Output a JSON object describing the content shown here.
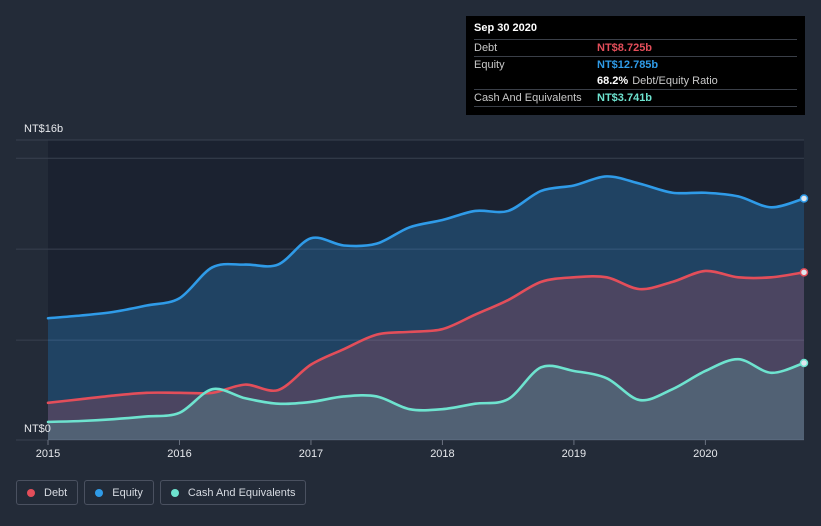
{
  "chart_data": {
    "type": "area",
    "y_top_label": "NT$16b",
    "y_bottom_label": "NT$0",
    "ylim": [
      0,
      16
    ],
    "xlim": [
      2015.0,
      2020.75
    ],
    "x_tick_labels": [
      "2015",
      "2016",
      "2017",
      "2018",
      "2019",
      "2020"
    ],
    "x_ticks": [
      2015,
      2016,
      2017,
      2018,
      2019,
      2020
    ],
    "series": [
      {
        "name": "Equity",
        "color": "#2f9be8",
        "points": [
          [
            2015.0,
            6.2
          ],
          [
            2015.25,
            6.35
          ],
          [
            2015.5,
            6.55
          ],
          [
            2015.75,
            6.9
          ],
          [
            2016.0,
            7.3
          ],
          [
            2016.25,
            9.0
          ],
          [
            2016.5,
            9.15
          ],
          [
            2016.75,
            9.15
          ],
          [
            2017.0,
            10.6
          ],
          [
            2017.25,
            10.2
          ],
          [
            2017.5,
            10.3
          ],
          [
            2017.75,
            11.2
          ],
          [
            2018.0,
            11.6
          ],
          [
            2018.25,
            12.1
          ],
          [
            2018.5,
            12.1
          ],
          [
            2018.75,
            13.2
          ],
          [
            2019.0,
            13.5
          ],
          [
            2019.25,
            14.0
          ],
          [
            2019.5,
            13.6
          ],
          [
            2019.75,
            13.1
          ],
          [
            2020.0,
            13.1
          ],
          [
            2020.25,
            12.9
          ],
          [
            2020.5,
            12.3
          ],
          [
            2020.75,
            12.785
          ]
        ]
      },
      {
        "name": "Debt",
        "color": "#e34e5a",
        "points": [
          [
            2015.0,
            1.55
          ],
          [
            2015.25,
            1.75
          ],
          [
            2015.5,
            1.95
          ],
          [
            2015.75,
            2.1
          ],
          [
            2016.0,
            2.1
          ],
          [
            2016.25,
            2.1
          ],
          [
            2016.5,
            2.55
          ],
          [
            2016.75,
            2.25
          ],
          [
            2017.0,
            3.65
          ],
          [
            2017.25,
            4.5
          ],
          [
            2017.5,
            5.3
          ],
          [
            2017.75,
            5.45
          ],
          [
            2018.0,
            5.6
          ],
          [
            2018.25,
            6.4
          ],
          [
            2018.5,
            7.2
          ],
          [
            2018.75,
            8.2
          ],
          [
            2019.0,
            8.45
          ],
          [
            2019.25,
            8.45
          ],
          [
            2019.5,
            7.8
          ],
          [
            2019.75,
            8.2
          ],
          [
            2020.0,
            8.8
          ],
          [
            2020.25,
            8.45
          ],
          [
            2020.5,
            8.45
          ],
          [
            2020.75,
            8.725
          ]
        ]
      },
      {
        "name": "Cash And Equivalents",
        "color": "#6ee3cf",
        "points": [
          [
            2015.0,
            0.5
          ],
          [
            2015.25,
            0.55
          ],
          [
            2015.5,
            0.65
          ],
          [
            2015.75,
            0.8
          ],
          [
            2016.0,
            1.0
          ],
          [
            2016.25,
            2.3
          ],
          [
            2016.5,
            1.8
          ],
          [
            2016.75,
            1.5
          ],
          [
            2017.0,
            1.6
          ],
          [
            2017.25,
            1.9
          ],
          [
            2017.5,
            1.9
          ],
          [
            2017.75,
            1.2
          ],
          [
            2018.0,
            1.2
          ],
          [
            2018.25,
            1.5
          ],
          [
            2018.5,
            1.75
          ],
          [
            2018.75,
            3.5
          ],
          [
            2019.0,
            3.3
          ],
          [
            2019.25,
            2.9
          ],
          [
            2019.5,
            1.7
          ],
          [
            2019.75,
            2.3
          ],
          [
            2020.0,
            3.3
          ],
          [
            2020.25,
            3.95
          ],
          [
            2020.5,
            3.2
          ],
          [
            2020.75,
            3.741
          ]
        ]
      }
    ]
  },
  "tooltip": {
    "date": "Sep 30 2020",
    "debt_label": "Debt",
    "debt_value": "NT$8.725b",
    "debt_color": "#e34e5a",
    "equity_label": "Equity",
    "equity_value": "NT$12.785b",
    "equity_color": "#2f9be8",
    "ratio_pct": "68.2%",
    "ratio_label": "Debt/Equity Ratio",
    "cash_label": "Cash And Equivalents",
    "cash_value": "NT$3.741b",
    "cash_color": "#6ee3cf"
  },
  "legend": [
    {
      "label": "Debt",
      "color": "#e34e5a"
    },
    {
      "label": "Equity",
      "color": "#2f9be8"
    },
    {
      "label": "Cash And Equivalents",
      "color": "#6ee3cf"
    }
  ]
}
